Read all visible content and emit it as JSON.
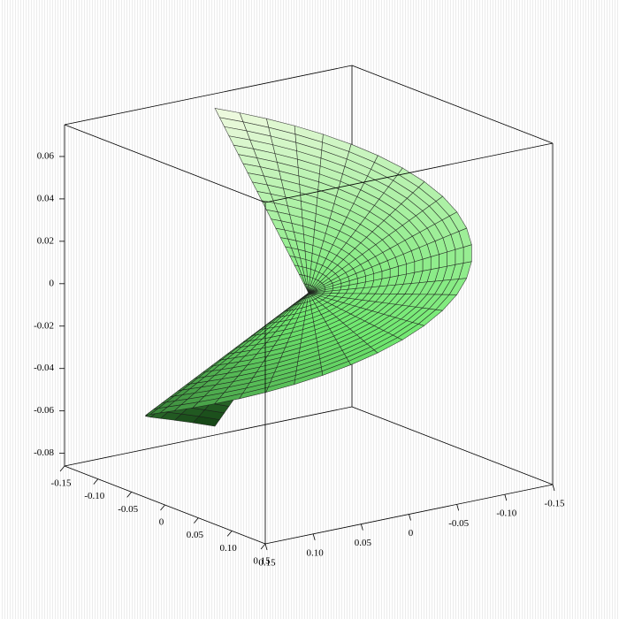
{
  "chart_data": {
    "type": "surface",
    "xlim": [
      -0.15,
      0.15
    ],
    "ylim": [
      -0.15,
      0.15
    ],
    "zlim": [
      -0.086,
      0.075
    ],
    "xticks": [
      -0.15,
      {
        "value": -0.1,
        "label": "-0.10"
      },
      -0.05,
      0,
      0.05,
      {
        "value": 0.1,
        "label": "0.10"
      },
      0.15
    ],
    "yticks": [
      0.15,
      {
        "value": 0.1,
        "label": "0.10"
      },
      0.05,
      0,
      -0.05,
      {
        "value": -0.1,
        "label": "-0.10"
      },
      -0.15
    ],
    "zticks": [
      0.06,
      0.04,
      0.02,
      0,
      -0.02,
      -0.04,
      -0.06,
      -0.08
    ],
    "colormap": [
      "#0b300b",
      "#6fe86f",
      "#fbfbea"
    ]
  }
}
